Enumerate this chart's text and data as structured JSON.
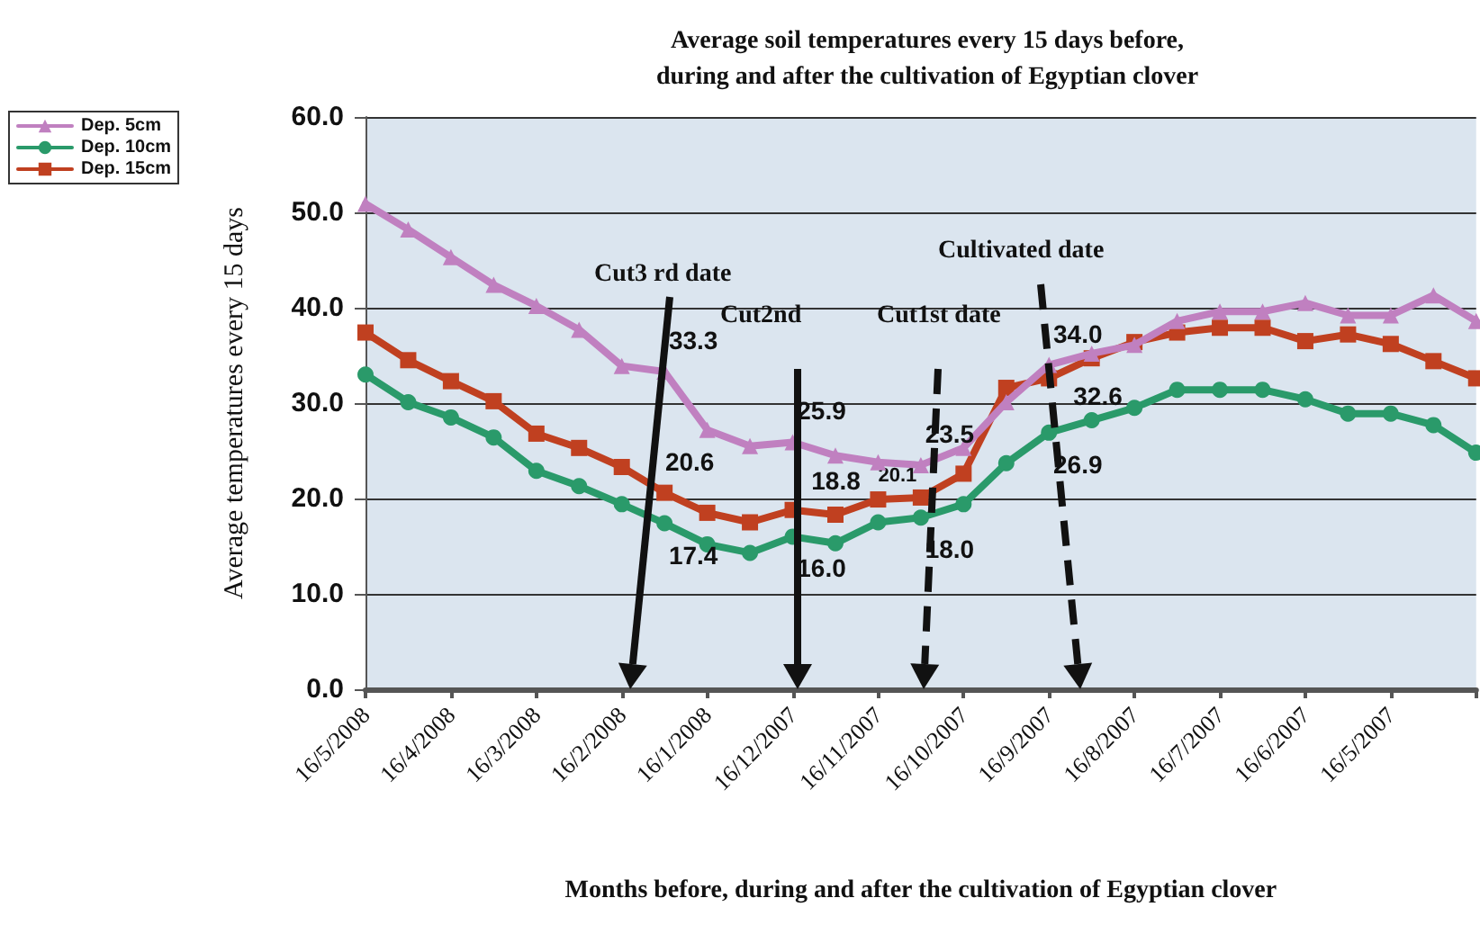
{
  "chart_data": {
    "type": "line",
    "title": "Average soil temperatures every 15 days before,\nduring and after the cultivation of Egyptian clover",
    "xlabel": "Months before, during and after the cultivation of Egyptian clover",
    "ylabel": "Average temperatures every 15 days",
    "categories": [
      "16/5/2008",
      null,
      "16/4/2008",
      null,
      "16/3/2008",
      null,
      "16/2/2008",
      null,
      "16/1/2008",
      null,
      "16/12/2007",
      null,
      "16/11/2007",
      null,
      "16/10/2007",
      null,
      "16/9/2007",
      null,
      "16/8/2007",
      null,
      "16/7/2007",
      null,
      "16/6/2007",
      null,
      "16/5/2007",
      null,
      null
    ],
    "series": [
      {
        "name": "Dep. 5cm",
        "color": "#c080c0",
        "marker": "triangle",
        "values": [
          50.9,
          48.2,
          45.3,
          42.4,
          40.2,
          37.7,
          33.9,
          33.3,
          27.2,
          25.5,
          25.9,
          24.5,
          23.8,
          23.5,
          25.3,
          30.1,
          34.0,
          35.2,
          36.1,
          38.6,
          39.6,
          39.6,
          40.5,
          39.2,
          39.2,
          41.3,
          38.6
        ],
        "value_labels": [
          null,
          null,
          null,
          null,
          null,
          null,
          null,
          "33.3",
          null,
          null,
          "25.9",
          null,
          null,
          "23.5",
          null,
          null,
          "34.0",
          null,
          null,
          null,
          null,
          null,
          null,
          null,
          null,
          null,
          null
        ]
      },
      {
        "name": "Dep. 10cm",
        "color": "#2a9a6a",
        "marker": "circle",
        "values": [
          33.0,
          30.1,
          28.5,
          26.4,
          22.9,
          21.3,
          19.4,
          17.4,
          15.2,
          14.3,
          16.0,
          15.3,
          17.5,
          18.0,
          19.4,
          23.7,
          26.9,
          28.2,
          29.5,
          31.4,
          31.4,
          31.4,
          30.4,
          28.9,
          28.9,
          27.7,
          24.8
        ],
        "value_labels": [
          null,
          null,
          null,
          null,
          null,
          null,
          null,
          "17.4",
          null,
          null,
          "16.0",
          null,
          null,
          "18.0",
          null,
          null,
          "26.9",
          null,
          null,
          null,
          null,
          null,
          null,
          null,
          null,
          null,
          null
        ]
      },
      {
        "name": "Dep. 15cm",
        "color": "#c04020",
        "marker": "square",
        "values": [
          37.4,
          34.5,
          32.3,
          30.2,
          26.8,
          25.3,
          23.3,
          20.6,
          18.5,
          17.5,
          18.8,
          18.3,
          19.9,
          20.1,
          22.6,
          31.6,
          32.6,
          34.7,
          36.4,
          37.4,
          37.9,
          37.9,
          36.5,
          37.2,
          36.2,
          34.4,
          32.6
        ],
        "value_labels": [
          null,
          null,
          null,
          null,
          null,
          null,
          null,
          "20.6",
          null,
          null,
          "18.8",
          null,
          null,
          "20.1",
          null,
          null,
          "32.6",
          null,
          null,
          null,
          null,
          null,
          null,
          null,
          null,
          null,
          null
        ]
      }
    ],
    "ylim": [
      0,
      60
    ],
    "yticks": [
      {
        "value": 0,
        "label": "0.0"
      },
      {
        "value": 10,
        "label": "10.0"
      },
      {
        "value": 20,
        "label": "20.0"
      },
      {
        "value": 30,
        "label": "30.0"
      },
      {
        "value": 40,
        "label": "40.0"
      },
      {
        "value": 50,
        "label": "50.0"
      },
      {
        "value": 60,
        "label": "60.0"
      }
    ],
    "grid": "y",
    "legend": "left",
    "line_style": "solid",
    "annotations": [
      "Cut3 rd date",
      "Cut2nd",
      "Cut1st date",
      "Cultivated date"
    ]
  }
}
